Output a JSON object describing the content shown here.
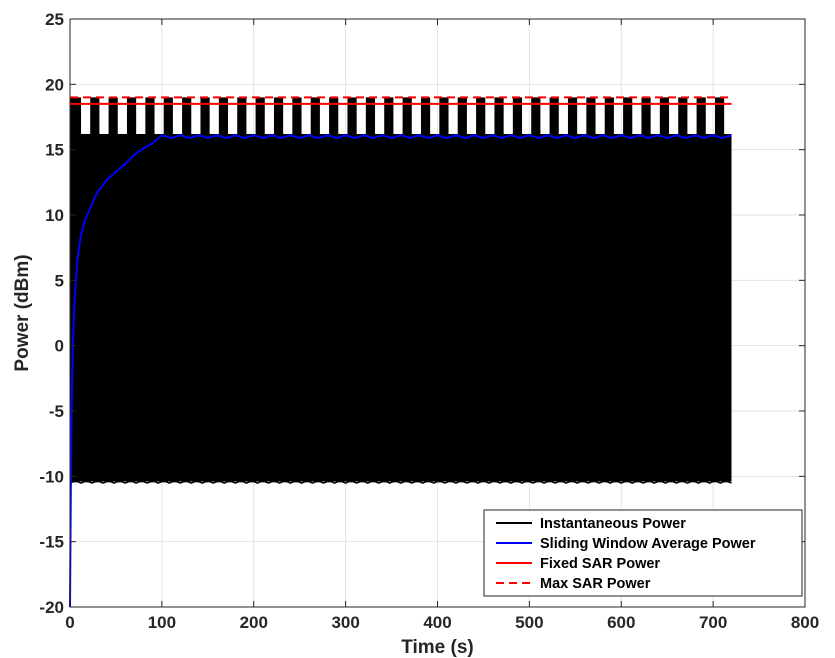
{
  "chart_data": {
    "type": "line",
    "title": "",
    "xlabel": "Time (s)",
    "ylabel": "Power (dBm)",
    "xlim": [
      0,
      800
    ],
    "ylim": [
      -20,
      25
    ],
    "xticks": [
      0,
      100,
      200,
      300,
      400,
      500,
      600,
      700,
      800
    ],
    "yticks": [
      -20,
      -15,
      -10,
      -5,
      0,
      5,
      10,
      15,
      20
    ],
    "grid": true,
    "legend_location": "bottom-right",
    "series": [
      {
        "name": "Instantaneous Power",
        "color": "#000000",
        "style": "solid",
        "x_range": [
          0,
          720
        ],
        "low": -10.4,
        "high": 19,
        "mid_level": 16.2,
        "pulse_period_s": 20,
        "first_pulse_s": 12
      },
      {
        "name": "Sliding Window Average Power",
        "color": "#0000ff",
        "style": "solid",
        "x": [
          0,
          1,
          2,
          3,
          5,
          8,
          12,
          16,
          20,
          25,
          30,
          35,
          40,
          50,
          60,
          70,
          80,
          90,
          100,
          110,
          120,
          130,
          140,
          150,
          160,
          170,
          180,
          190,
          200,
          210,
          220,
          230,
          240,
          250,
          260,
          270,
          280,
          290,
          300,
          310,
          320,
          330,
          340,
          350,
          360,
          370,
          380,
          390,
          400,
          410,
          420,
          430,
          440,
          450,
          460,
          470,
          480,
          490,
          500,
          510,
          520,
          530,
          540,
          550,
          560,
          570,
          580,
          590,
          600,
          610,
          620,
          630,
          640,
          650,
          660,
          670,
          680,
          690,
          700,
          710,
          720
        ],
        "y": [
          -20,
          -10,
          -4,
          0,
          3.5,
          6.5,
          8.5,
          9.5,
          10.2,
          11,
          11.8,
          12.2,
          12.7,
          13.3,
          13.9,
          14.6,
          15.1,
          15.5,
          16.1,
          15.9,
          16.1,
          15.9,
          16.1,
          15.9,
          16.1,
          15.9,
          16.1,
          15.9,
          16.1,
          15.9,
          16.1,
          15.9,
          16.1,
          15.9,
          16.1,
          15.9,
          16.1,
          15.9,
          16.1,
          15.9,
          16.1,
          15.9,
          16.1,
          15.9,
          16.1,
          15.9,
          16.1,
          15.9,
          16.1,
          15.9,
          16.1,
          15.9,
          16.1,
          15.9,
          16.1,
          15.9,
          16.1,
          15.9,
          16.1,
          15.9,
          16.1,
          15.9,
          16.1,
          15.9,
          16.1,
          15.9,
          16.1,
          15.9,
          16.1,
          15.9,
          16.1,
          15.9,
          16.1,
          15.9,
          16.1,
          15.9,
          16.1,
          15.9,
          16.1,
          15.9,
          16.1
        ]
      },
      {
        "name": "Fixed SAR Power",
        "color": "#ff0000",
        "style": "solid",
        "x": [
          0,
          720
        ],
        "y": [
          18.5,
          18.5
        ]
      },
      {
        "name": "Max SAR Power",
        "color": "#ff0000",
        "style": "dashed",
        "x": [
          0,
          720
        ],
        "y": [
          19,
          19
        ]
      }
    ]
  }
}
